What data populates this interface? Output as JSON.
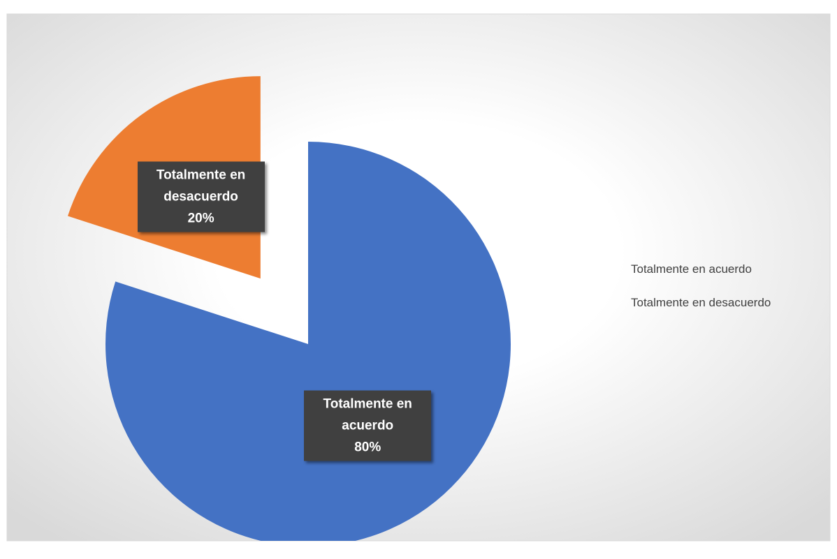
{
  "chart_data": {
    "type": "pie",
    "categories": [
      "Totalmente en acuerdo",
      "Totalmente en desacuerdo"
    ],
    "values": [
      80,
      20
    ],
    "value_labels": [
      "80%",
      "20%"
    ],
    "colors": [
      "#4472c4",
      "#ed7d31"
    ],
    "legend": "right"
  }
}
